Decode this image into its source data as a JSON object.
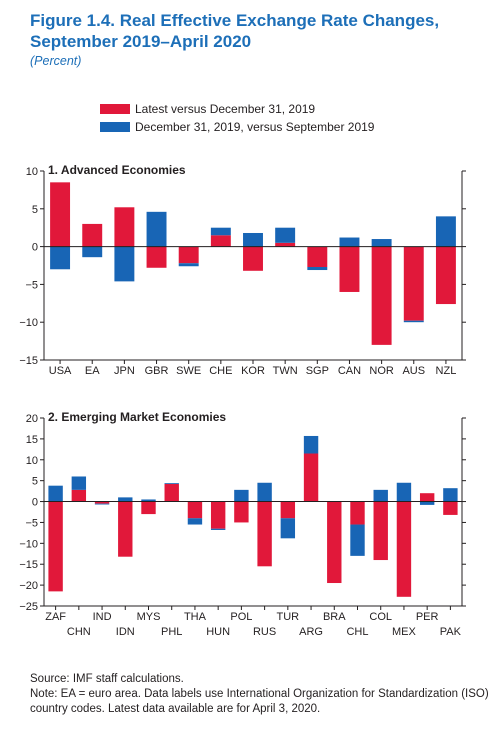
{
  "title": "Figure 1.4. Real Effective Exchange Rate Changes, September 2019–April 2020",
  "subtitle": "(Percent)",
  "legend": [
    {
      "label": "Latest versus December 31, 2019",
      "color": "#e1183a"
    },
    {
      "label": "December 31, 2019, versus September 2019",
      "color": "#1865b5"
    }
  ],
  "colors": {
    "latest": "#e1183a",
    "previous": "#1865b5",
    "axis": "#231f20"
  },
  "chart_data": [
    {
      "type": "bar",
      "stacked": true,
      "title": "1. Advanced Economies",
      "ylim": [
        -15,
        10
      ],
      "yticks": [
        -15,
        -10,
        -5,
        0,
        5,
        10
      ],
      "categories": [
        "USA",
        "EA",
        "JPN",
        "GBR",
        "SWE",
        "CHE",
        "KOR",
        "TWN",
        "SGP",
        "CAN",
        "NOR",
        "AUS",
        "NZL"
      ],
      "series": [
        {
          "name": "Latest versus December 31, 2019",
          "values": [
            8.5,
            3.0,
            5.2,
            -2.8,
            -2.2,
            1.5,
            -3.2,
            0.5,
            -2.7,
            -6.0,
            -13.0,
            -9.8,
            -7.6
          ]
        },
        {
          "name": "December 31, 2019, versus September 2019",
          "values": [
            -3.0,
            -1.4,
            -4.6,
            4.6,
            -0.4,
            1.0,
            1.8,
            2.0,
            -0.4,
            1.2,
            1.0,
            -0.2,
            4.0
          ]
        }
      ]
    },
    {
      "type": "bar",
      "stacked": true,
      "title": "2. Emerging Market Economies",
      "ylim": [
        -25,
        20
      ],
      "yticks": [
        -25,
        -20,
        -15,
        -10,
        -5,
        0,
        5,
        10,
        15,
        20
      ],
      "categories": [
        "ZAF",
        "CHN",
        "IND",
        "IDN",
        "MYS",
        "PHL",
        "THA",
        "HUN",
        "POL",
        "RUS",
        "TUR",
        "ARG",
        "BRA",
        "CHL",
        "COL",
        "MEX",
        "PER",
        "PAK"
      ],
      "series": [
        {
          "name": "Latest versus December 31, 2019",
          "values": [
            -21.5,
            2.8,
            -0.5,
            -13.2,
            -3.0,
            4.2,
            -4.0,
            -6.5,
            -5.0,
            -15.5,
            -4.0,
            11.5,
            -19.5,
            -5.5,
            -14.0,
            -22.8,
            2.0,
            -3.2
          ]
        },
        {
          "name": "December 31, 2019, versus September 2019",
          "values": [
            3.8,
            3.2,
            -0.2,
            1.0,
            0.5,
            0.2,
            -1.5,
            -0.3,
            2.8,
            4.5,
            -4.8,
            4.2,
            0.0,
            -7.5,
            2.8,
            4.5,
            -0.8,
            3.2
          ]
        }
      ]
    }
  ],
  "footer": {
    "source": "Source: IMF staff calculations.",
    "note": "Note: EA = euro area. Data labels use International Organization for Standardization (ISO) country codes. Latest data available are for April 3, 2020."
  }
}
